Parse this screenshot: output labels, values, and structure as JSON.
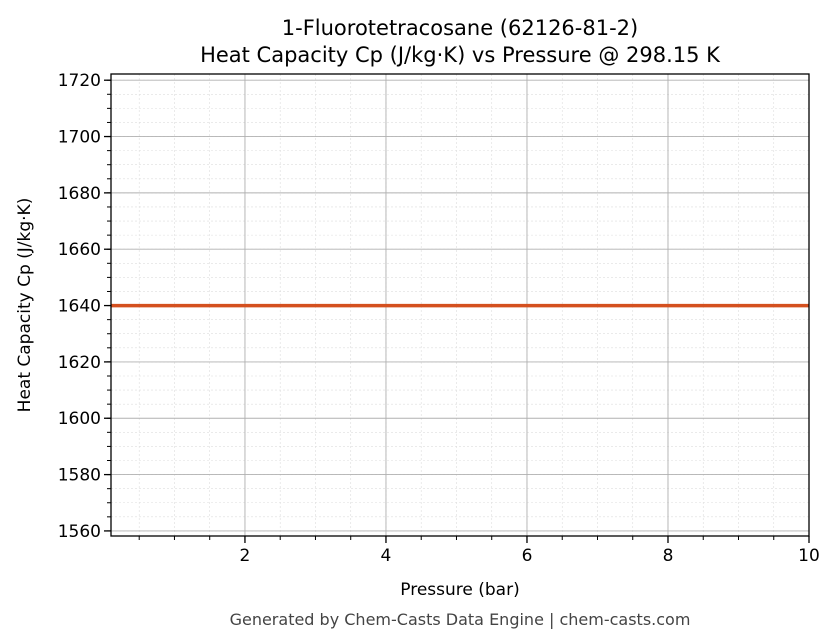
{
  "chart_data": {
    "type": "line",
    "title": "1-Fluorotetracosane (62126-81-2)",
    "subtitle": "Heat Capacity Cp (J/kg·K) vs Pressure @ 298.15 K",
    "xlabel": "Pressure (bar)",
    "ylabel": "Heat Capacity Cp (J/kg·K)",
    "xlim": [
      0.1,
      10
    ],
    "ylim": [
      1558.2,
      1722.2
    ],
    "xticks": [
      2,
      4,
      6,
      8,
      10
    ],
    "yticks": [
      1560,
      1580,
      1600,
      1620,
      1640,
      1660,
      1680,
      1700,
      1720
    ],
    "x_minor_step": 0.5,
    "y_minor_step": 5,
    "grid": true,
    "series": [
      {
        "x": [
          0.1,
          10
        ],
        "y": [
          1640,
          1640
        ],
        "color": "#d4501f"
      }
    ],
    "footer": "Generated by Chem-Casts Data Engine | chem-casts.com"
  }
}
